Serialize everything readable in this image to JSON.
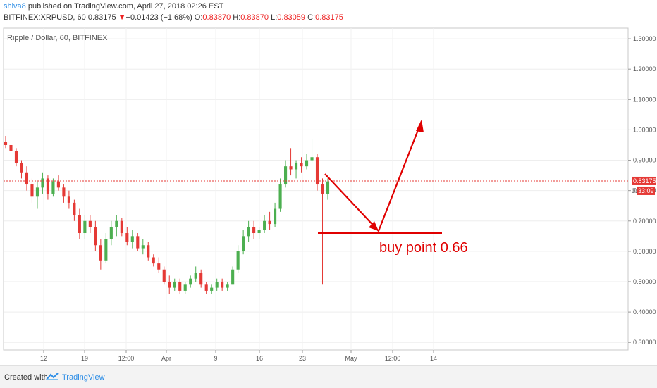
{
  "header": {
    "author": "shiva8",
    "published_text": "published on TradingView.com, April 27, 2018 02:26 EST",
    "symbol": "BITFINEX:XRPUSD, 60",
    "last": "0.83175",
    "change_arrow": "▼",
    "change": "−0.01423 (−1.68%)",
    "open_label": "O:",
    "open": "0.83870",
    "high_label": "H:",
    "high": "0.83870",
    "low_label": "L:",
    "low": "0.83059",
    "close_label": "C:",
    "close": "0.83175"
  },
  "footer": {
    "created_with": "Created with",
    "brand": "TradingView",
    "logo_icon": "tradingview-logo-icon"
  },
  "chart_data": {
    "type": "candlestick",
    "title": "Ripple / Dollar, 60, BITFINEX",
    "y_ticks": [
      "1.30000",
      "1.20000",
      "1.10000",
      "1.00000",
      "0.90000",
      "0.80000",
      "0.70000",
      "0.60000",
      "0.50000",
      "0.40000",
      "0.30000"
    ],
    "y_tick_values": [
      1.3,
      1.2,
      1.1,
      1.0,
      0.9,
      0.8,
      0.7,
      0.6,
      0.5,
      0.4,
      0.3
    ],
    "x_ticks": [
      "12",
      "19",
      "12:00",
      "Apr",
      "9",
      "16",
      "23",
      "May",
      "12:00",
      "14"
    ],
    "ylim": [
      0.275,
      1.335
    ],
    "price_label": "0.83175",
    "price_value": 0.83175,
    "countdown_label": "33:09",
    "countdown_prefix": "0.",
    "grid": true,
    "up_color": "#4caf50",
    "down_color": "#e53935",
    "price_line_color": "#e53935",
    "candles": [
      {
        "o": 0.96,
        "h": 0.98,
        "l": 0.94,
        "c": 0.95
      },
      {
        "o": 0.95,
        "h": 0.96,
        "l": 0.92,
        "c": 0.93
      },
      {
        "o": 0.93,
        "h": 0.94,
        "l": 0.88,
        "c": 0.89
      },
      {
        "o": 0.89,
        "h": 0.9,
        "l": 0.84,
        "c": 0.86
      },
      {
        "o": 0.86,
        "h": 0.88,
        "l": 0.8,
        "c": 0.82
      },
      {
        "o": 0.82,
        "h": 0.84,
        "l": 0.76,
        "c": 0.78
      },
      {
        "o": 0.78,
        "h": 0.83,
        "l": 0.74,
        "c": 0.81
      },
      {
        "o": 0.81,
        "h": 0.86,
        "l": 0.79,
        "c": 0.84
      },
      {
        "o": 0.84,
        "h": 0.85,
        "l": 0.77,
        "c": 0.79
      },
      {
        "o": 0.79,
        "h": 0.84,
        "l": 0.78,
        "c": 0.83
      },
      {
        "o": 0.83,
        "h": 0.85,
        "l": 0.8,
        "c": 0.81
      },
      {
        "o": 0.81,
        "h": 0.82,
        "l": 0.76,
        "c": 0.78
      },
      {
        "o": 0.78,
        "h": 0.8,
        "l": 0.74,
        "c": 0.76
      },
      {
        "o": 0.76,
        "h": 0.77,
        "l": 0.7,
        "c": 0.72
      },
      {
        "o": 0.72,
        "h": 0.74,
        "l": 0.64,
        "c": 0.66
      },
      {
        "o": 0.66,
        "h": 0.72,
        "l": 0.64,
        "c": 0.7
      },
      {
        "o": 0.7,
        "h": 0.72,
        "l": 0.66,
        "c": 0.68
      },
      {
        "o": 0.68,
        "h": 0.7,
        "l": 0.6,
        "c": 0.62
      },
      {
        "o": 0.62,
        "h": 0.64,
        "l": 0.54,
        "c": 0.57
      },
      {
        "o": 0.57,
        "h": 0.66,
        "l": 0.56,
        "c": 0.64
      },
      {
        "o": 0.64,
        "h": 0.7,
        "l": 0.62,
        "c": 0.68
      },
      {
        "o": 0.68,
        "h": 0.72,
        "l": 0.65,
        "c": 0.7
      },
      {
        "o": 0.7,
        "h": 0.71,
        "l": 0.65,
        "c": 0.66
      },
      {
        "o": 0.66,
        "h": 0.68,
        "l": 0.62,
        "c": 0.63
      },
      {
        "o": 0.63,
        "h": 0.67,
        "l": 0.61,
        "c": 0.65
      },
      {
        "o": 0.65,
        "h": 0.66,
        "l": 0.6,
        "c": 0.61
      },
      {
        "o": 0.61,
        "h": 0.64,
        "l": 0.59,
        "c": 0.62
      },
      {
        "o": 0.62,
        "h": 0.63,
        "l": 0.57,
        "c": 0.58
      },
      {
        "o": 0.58,
        "h": 0.59,
        "l": 0.55,
        "c": 0.56
      },
      {
        "o": 0.56,
        "h": 0.58,
        "l": 0.53,
        "c": 0.54
      },
      {
        "o": 0.54,
        "h": 0.55,
        "l": 0.49,
        "c": 0.5
      },
      {
        "o": 0.5,
        "h": 0.52,
        "l": 0.46,
        "c": 0.48
      },
      {
        "o": 0.48,
        "h": 0.51,
        "l": 0.47,
        "c": 0.5
      },
      {
        "o": 0.5,
        "h": 0.51,
        "l": 0.46,
        "c": 0.47
      },
      {
        "o": 0.47,
        "h": 0.5,
        "l": 0.46,
        "c": 0.49
      },
      {
        "o": 0.49,
        "h": 0.52,
        "l": 0.48,
        "c": 0.51
      },
      {
        "o": 0.51,
        "h": 0.55,
        "l": 0.5,
        "c": 0.53
      },
      {
        "o": 0.53,
        "h": 0.54,
        "l": 0.48,
        "c": 0.49
      },
      {
        "o": 0.49,
        "h": 0.5,
        "l": 0.46,
        "c": 0.47
      },
      {
        "o": 0.47,
        "h": 0.49,
        "l": 0.46,
        "c": 0.48
      },
      {
        "o": 0.48,
        "h": 0.51,
        "l": 0.47,
        "c": 0.5
      },
      {
        "o": 0.5,
        "h": 0.51,
        "l": 0.47,
        "c": 0.48
      },
      {
        "o": 0.48,
        "h": 0.5,
        "l": 0.47,
        "c": 0.49
      },
      {
        "o": 0.49,
        "h": 0.55,
        "l": 0.49,
        "c": 0.54
      },
      {
        "o": 0.54,
        "h": 0.62,
        "l": 0.53,
        "c": 0.6
      },
      {
        "o": 0.6,
        "h": 0.67,
        "l": 0.59,
        "c": 0.65
      },
      {
        "o": 0.65,
        "h": 0.7,
        "l": 0.63,
        "c": 0.68
      },
      {
        "o": 0.68,
        "h": 0.7,
        "l": 0.64,
        "c": 0.66
      },
      {
        "o": 0.66,
        "h": 0.68,
        "l": 0.64,
        "c": 0.67
      },
      {
        "o": 0.67,
        "h": 0.72,
        "l": 0.66,
        "c": 0.7
      },
      {
        "o": 0.7,
        "h": 0.73,
        "l": 0.67,
        "c": 0.69
      },
      {
        "o": 0.69,
        "h": 0.76,
        "l": 0.68,
        "c": 0.74
      },
      {
        "o": 0.74,
        "h": 0.84,
        "l": 0.73,
        "c": 0.82
      },
      {
        "o": 0.82,
        "h": 0.9,
        "l": 0.81,
        "c": 0.88
      },
      {
        "o": 0.88,
        "h": 0.94,
        "l": 0.85,
        "c": 0.87
      },
      {
        "o": 0.87,
        "h": 0.9,
        "l": 0.84,
        "c": 0.89
      },
      {
        "o": 0.89,
        "h": 0.91,
        "l": 0.86,
        "c": 0.88
      },
      {
        "o": 0.88,
        "h": 0.92,
        "l": 0.87,
        "c": 0.9
      },
      {
        "o": 0.9,
        "h": 0.97,
        "l": 0.89,
        "c": 0.91
      },
      {
        "o": 0.91,
        "h": 0.92,
        "l": 0.8,
        "c": 0.82
      },
      {
        "o": 0.82,
        "h": 0.84,
        "l": 0.49,
        "c": 0.79
      },
      {
        "o": 0.79,
        "h": 0.84,
        "l": 0.77,
        "c": 0.83
      }
    ]
  },
  "annotations": {
    "buy_text": "buy point 0.66",
    "buy_level": 0.66,
    "color": "#e00000"
  }
}
